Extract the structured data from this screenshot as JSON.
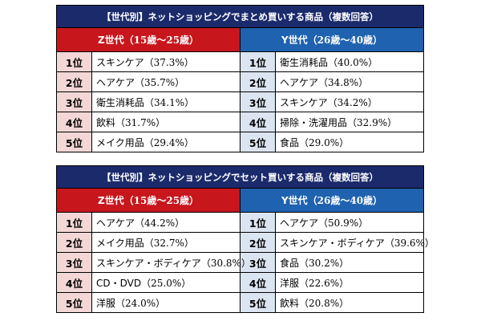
{
  "tables": [
    {
      "title": "【世代別】ネットショッピングでまとめ買いする商品（複数回答）",
      "z_header": {
        "label": "Z世代",
        "range": "（15歳～25歳）"
      },
      "y_header": {
        "label": "Y世代",
        "range": "（26歳～40歳）"
      },
      "rows": [
        {
          "z_rank": "1位",
          "z_item": "スキンケア",
          "z_pct": "（37.3%）",
          "y_rank": "1位",
          "y_item": "衛生消耗品",
          "y_pct": "（40.0%）"
        },
        {
          "z_rank": "2位",
          "z_item": "ヘアケア",
          "z_pct": "（35.7%）",
          "y_rank": "2位",
          "y_item": "ヘアケア",
          "y_pct": "（34.8%）"
        },
        {
          "z_rank": "3位",
          "z_item": "衛生消耗品",
          "z_pct": "（34.1%）",
          "y_rank": "3位",
          "y_item": "スキンケア",
          "y_pct": "（34.2%）"
        },
        {
          "z_rank": "4位",
          "z_item": "飲料",
          "z_pct": "（31.7%）",
          "y_rank": "4位",
          "y_item": "掃除・洗濯用品",
          "y_pct": "（32.9%）"
        },
        {
          "z_rank": "5位",
          "z_item": "メイク用品",
          "z_pct": "（29.4%）",
          "y_rank": "5位",
          "y_item": "食品",
          "y_pct": "（29.0%）"
        }
      ]
    },
    {
      "title": "【世代別】ネットショッピングでセット買いする商品（複数回答）",
      "z_header": {
        "label": "Z世代",
        "range": "（15歳～25歳）"
      },
      "y_header": {
        "label": "Y世代",
        "range": "（26歳～40歳）"
      },
      "rows": [
        {
          "z_rank": "1位",
          "z_item": "ヘアケア",
          "z_pct": "（44.2%）",
          "y_rank": "1位",
          "y_item": "ヘアケア",
          "y_pct": "（50.9%）"
        },
        {
          "z_rank": "2位",
          "z_item": "メイク用品",
          "z_pct": "（32.7%）",
          "y_rank": "2位",
          "y_item": "スキンケア・ボディケア",
          "y_pct": "（39.6%）"
        },
        {
          "z_rank": "3位",
          "z_item": "スキンケア・ボディケア",
          "z_pct": "（30.8%）",
          "y_rank": "3位",
          "y_item": "食品",
          "y_pct": "（30.2%）"
        },
        {
          "z_rank": "4位",
          "z_item": "CD・DVD",
          "z_pct": "（25.0%）",
          "y_rank": "4位",
          "y_item": "洋服",
          "y_pct": "（22.6%）"
        },
        {
          "z_rank": "5位",
          "z_item": "洋服",
          "z_pct": "（24.0%）",
          "y_rank": "5位",
          "y_item": "飲料",
          "y_pct": "（20.8%）"
        }
      ]
    }
  ],
  "colors": {
    "title_bg": "#1b2a6b",
    "z_header_bg": "#c8161d",
    "y_header_bg": "#1f62b0",
    "z_rank_bg": "#f2d7d6",
    "y_rank_bg": "#dbe5f1"
  }
}
